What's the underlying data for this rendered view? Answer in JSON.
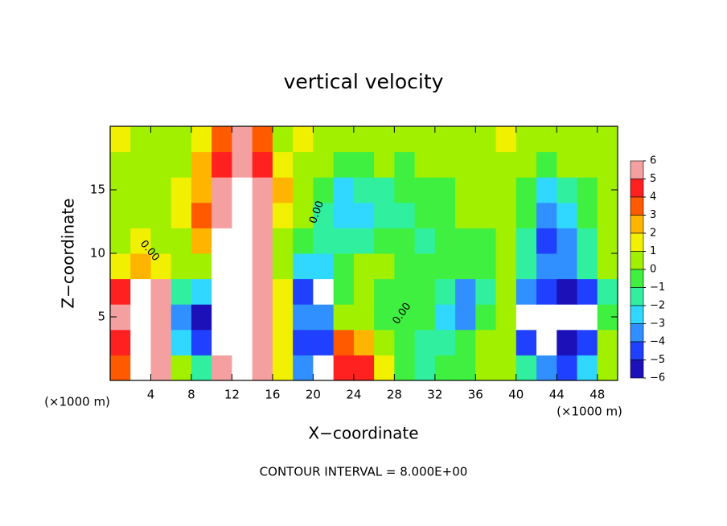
{
  "chart_data": {
    "type": "contour-fill",
    "title": "vertical velocity",
    "x_label": "X−coordinate",
    "y_label": "Z−coordinate",
    "x_unit": "(×1000 m)",
    "footer": "CONTOUR INTERVAL = 8.000E+00",
    "annotations": [
      "0.00",
      "0.00",
      "0.00"
    ],
    "xlim": [
      0,
      50
    ],
    "ylim": [
      0,
      20
    ],
    "xticks": [
      4,
      8,
      12,
      16,
      20,
      24,
      28,
      32,
      36,
      40,
      44,
      48
    ],
    "yticks": [
      5,
      10,
      15
    ],
    "x": [
      1,
      3,
      5,
      7,
      9,
      11,
      13,
      15,
      17,
      19,
      21,
      23,
      25,
      27,
      29,
      31,
      33,
      35,
      37,
      39,
      41,
      43,
      45,
      47,
      49
    ],
    "y": [
      1,
      3,
      5,
      7,
      9,
      11,
      13,
      15,
      17,
      19
    ],
    "z": [
      [
        3,
        7,
        5,
        0.5,
        -2,
        6,
        7,
        5,
        1,
        -4,
        -7,
        4,
        4,
        1,
        -1,
        -2,
        -1,
        -1,
        0.5,
        0.5,
        -2,
        -4,
        -5,
        -3,
        0.5
      ],
      [
        4,
        8,
        6,
        -3,
        -5,
        7,
        8,
        6,
        1,
        -5,
        -5,
        3,
        2,
        0.5,
        -1,
        -2,
        -2,
        -1,
        0.5,
        0.5,
        -5,
        -7,
        -6,
        -5,
        0.5
      ],
      [
        5,
        8,
        6,
        -4,
        -6,
        7,
        8,
        6,
        1,
        -4,
        -4,
        0.5,
        0,
        -1,
        -1,
        -1,
        -3,
        -4,
        -1,
        0.5,
        -7,
        -7,
        -7,
        -7,
        -1
      ],
      [
        4,
        7,
        5,
        -2,
        -3,
        7,
        8,
        5,
        1,
        -5,
        -7,
        -1,
        0,
        -1,
        -1,
        -1,
        -2,
        -4,
        -2,
        0.5,
        -4,
        -5,
        -6,
        -5,
        -2
      ],
      [
        1,
        2,
        1,
        0.5,
        0,
        7,
        8,
        5,
        0.5,
        -3,
        -3,
        -1,
        0.5,
        0.5,
        -1,
        -1,
        -1,
        -1,
        -1,
        0.5,
        -2,
        -4,
        -4,
        -2,
        0.5
      ],
      [
        0.5,
        1,
        0.5,
        0.5,
        2,
        7,
        8,
        5,
        0.5,
        -1,
        -2,
        -2,
        -2,
        -1,
        -1,
        -2,
        -1,
        -1,
        -1,
        0,
        -2,
        -5,
        -4,
        -2,
        0.5
      ],
      [
        0.5,
        0.5,
        0.5,
        1,
        3,
        6,
        7,
        5,
        1,
        0.5,
        -2,
        -3,
        -3,
        -2,
        -2,
        -1,
        -1,
        0.5,
        0.5,
        0,
        -1,
        -4,
        -3,
        -1,
        0.5
      ],
      [
        0.5,
        0.5,
        0.5,
        1,
        2,
        5,
        7,
        5,
        2,
        0.5,
        -1,
        -3,
        -2,
        -2,
        -1,
        -1,
        -1,
        0.5,
        0.5,
        0.5,
        -1,
        -3,
        -2,
        -1,
        0.5
      ],
      [
        0.5,
        0.5,
        0.5,
        0.5,
        2,
        4,
        6,
        4,
        1,
        0.5,
        0.5,
        -1,
        -1,
        0.5,
        -1,
        0.5,
        0.5,
        0.5,
        0.5,
        0.5,
        0.5,
        -1,
        0.5,
        0.5,
        0.5
      ],
      [
        1,
        0.5,
        0.5,
        0.5,
        1,
        3,
        5,
        3,
        0.5,
        1,
        0.5,
        0.5,
        0.5,
        0.5,
        0.5,
        0.5,
        0.5,
        0.5,
        0.5,
        1,
        0.5,
        0.5,
        0.5,
        0.5,
        0.5
      ]
    ],
    "out_of_range_color": "#ffffff",
    "colorbar_ticks": [
      6,
      5,
      4,
      3,
      2,
      1,
      0,
      {
        "value": -1,
        "label": "−1"
      },
      {
        "value": -2,
        "label": "−2"
      },
      {
        "value": -3,
        "label": "−3"
      },
      {
        "value": -4,
        "label": "−4"
      },
      {
        "value": -5,
        "label": "−5"
      },
      {
        "value": -6,
        "label": "−6"
      }
    ],
    "colors": [
      "#f4a0a0",
      "#ff2020",
      "#ff5a00",
      "#ffb400",
      "#f0f000",
      "#a0f000",
      "#40f040",
      "#30f0a0",
      "#30d8ff",
      "#3090ff",
      "#2040ff",
      "#1c10b8"
    ]
  }
}
